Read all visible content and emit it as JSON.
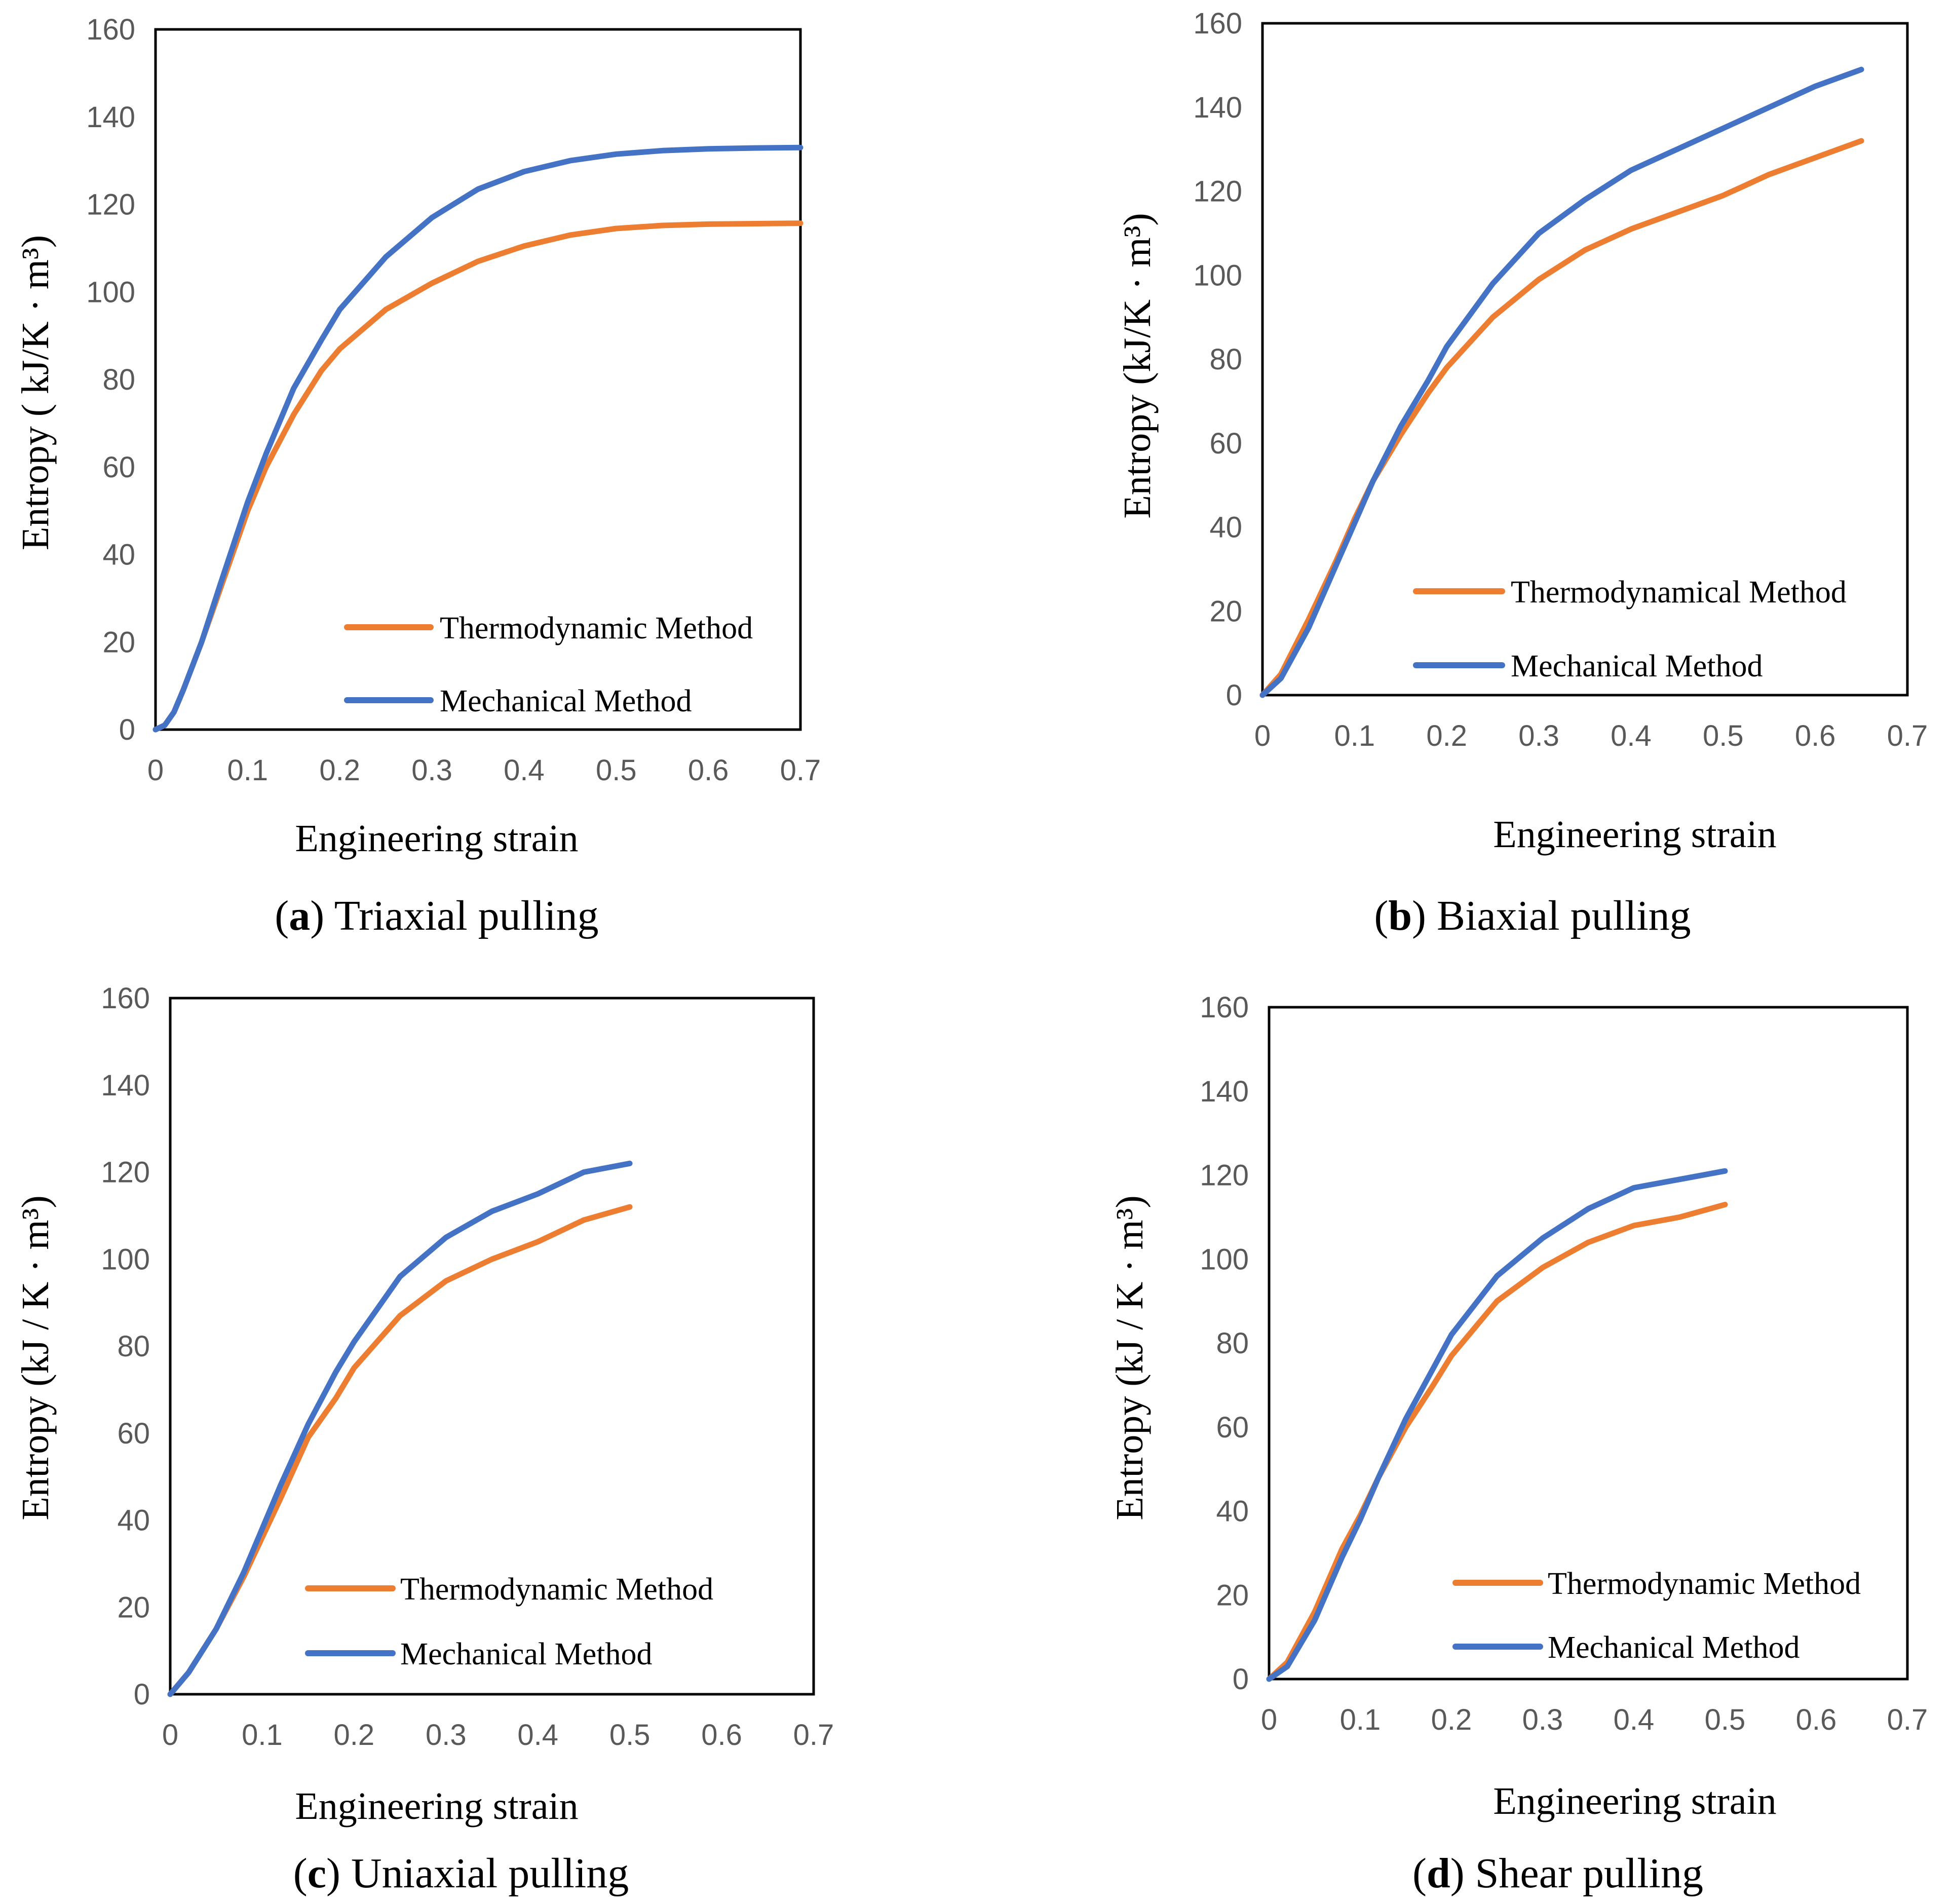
{
  "chart_data": [
    {
      "id": "a",
      "type": "line",
      "caption_letter": "a",
      "caption_text": "Triaxial pulling",
      "xlabel": "Engineering strain",
      "ylabel": "Entropy ( kJ/K · m³)",
      "xlim": [
        0,
        0.7
      ],
      "ylim": [
        0,
        160
      ],
      "xticks": [
        "0",
        "0.1",
        "0.2",
        "0.3",
        "0.4",
        "0.5",
        "0.6",
        "0.7"
      ],
      "yticks": [
        "0",
        "20",
        "40",
        "60",
        "80",
        "100",
        "120",
        "140",
        "160"
      ],
      "legend_position": "bottom-right",
      "series": [
        {
          "name": "Thermodynamic Method",
          "color": "#ED7D31",
          "x": [
            0,
            0.01,
            0.02,
            0.03,
            0.05,
            0.07,
            0.1,
            0.12,
            0.15,
            0.18,
            0.2,
            0.25,
            0.3,
            0.35,
            0.4,
            0.45,
            0.5,
            0.55,
            0.6,
            0.65,
            0.7
          ],
          "y": [
            0,
            1,
            4,
            9,
            20,
            32,
            50,
            60,
            72,
            82,
            87,
            96,
            102,
            107,
            110.5,
            113,
            114.5,
            115.2,
            115.5,
            115.6,
            115.7
          ]
        },
        {
          "name": "Mechanical Method",
          "color": "#4472C4",
          "x": [
            0,
            0.01,
            0.02,
            0.03,
            0.05,
            0.07,
            0.1,
            0.12,
            0.15,
            0.18,
            0.2,
            0.25,
            0.3,
            0.35,
            0.4,
            0.45,
            0.5,
            0.55,
            0.6,
            0.65,
            0.7
          ],
          "y": [
            0,
            1,
            4,
            9,
            20,
            33,
            52,
            63,
            78,
            89,
            96,
            108,
            117,
            123.5,
            127.5,
            130,
            131.5,
            132.3,
            132.7,
            132.9,
            133
          ]
        }
      ]
    },
    {
      "id": "b",
      "type": "line",
      "caption_letter": "b",
      "caption_text": "Biaxial pulling",
      "xlabel": "Engineering strain",
      "ylabel": "Entropy (kJ/K · m³)",
      "xlim": [
        0,
        0.7
      ],
      "ylim": [
        0,
        160
      ],
      "xticks": [
        "0",
        "0.1",
        "0.2",
        "0.3",
        "0.4",
        "0.5",
        "0.6",
        "0.7"
      ],
      "yticks": [
        "0",
        "20",
        "40",
        "60",
        "80",
        "100",
        "120",
        "140",
        "160"
      ],
      "legend_position": "bottom-right",
      "series": [
        {
          "name": "Thermodynamical Method",
          "color": "#ED7D31",
          "x": [
            0,
            0.02,
            0.05,
            0.08,
            0.1,
            0.12,
            0.15,
            0.18,
            0.2,
            0.25,
            0.3,
            0.35,
            0.4,
            0.45,
            0.5,
            0.55,
            0.6,
            0.65
          ],
          "y": [
            0,
            5,
            18,
            32,
            42,
            51,
            62,
            72,
            78,
            90,
            99,
            106,
            111,
            115,
            119,
            124,
            128,
            132
          ]
        },
        {
          "name": "Mechanical Method",
          "color": "#4472C4",
          "x": [
            0,
            0.02,
            0.05,
            0.08,
            0.1,
            0.12,
            0.15,
            0.18,
            0.2,
            0.25,
            0.3,
            0.35,
            0.4,
            0.45,
            0.5,
            0.55,
            0.6,
            0.65
          ],
          "y": [
            0,
            4,
            16,
            31,
            41,
            51,
            64,
            75,
            83,
            98,
            110,
            118,
            125,
            130,
            135,
            140,
            145,
            149
          ]
        }
      ]
    },
    {
      "id": "c",
      "type": "line",
      "caption_letter": "c",
      "caption_text": "Uniaxial pulling",
      "xlabel": "Engineering strain",
      "ylabel": "Entropy (kJ / K · m³)",
      "xlim": [
        0,
        0.7
      ],
      "ylim": [
        0,
        160
      ],
      "xticks": [
        "0",
        "0.1",
        "0.2",
        "0.3",
        "0.4",
        "0.5",
        "0.6",
        "0.7"
      ],
      "yticks": [
        "0",
        "20",
        "40",
        "60",
        "80",
        "100",
        "120",
        "140",
        "160"
      ],
      "legend_position": "bottom-right",
      "series": [
        {
          "name": "Thermodynamic Method",
          "color": "#ED7D31",
          "x": [
            0,
            0.02,
            0.05,
            0.08,
            0.1,
            0.12,
            0.15,
            0.18,
            0.2,
            0.25,
            0.3,
            0.35,
            0.4,
            0.45,
            0.5
          ],
          "y": [
            0,
            5,
            15,
            27,
            36,
            45,
            59,
            68,
            75,
            87,
            95,
            100,
            104,
            109,
            112
          ]
        },
        {
          "name": "Mechanical Method",
          "color": "#4472C4",
          "x": [
            0,
            0.02,
            0.05,
            0.08,
            0.1,
            0.12,
            0.15,
            0.18,
            0.2,
            0.25,
            0.3,
            0.35,
            0.4,
            0.45,
            0.5
          ],
          "y": [
            0,
            5,
            15,
            28,
            38,
            48,
            62,
            74,
            81,
            96,
            105,
            111,
            115,
            120,
            122
          ]
        }
      ]
    },
    {
      "id": "d",
      "type": "line",
      "caption_letter": "d",
      "caption_text": "Shear pulling",
      "xlabel": "Engineering strain",
      "ylabel": "Entropy (kJ / K · m³)",
      "xlim": [
        0,
        0.7
      ],
      "ylim": [
        0,
        160
      ],
      "xticks": [
        "0",
        "0.1",
        "0.2",
        "0.3",
        "0.4",
        "0.5",
        "0.6",
        "0.7"
      ],
      "yticks": [
        "0",
        "20",
        "40",
        "60",
        "80",
        "100",
        "120",
        "140",
        "160"
      ],
      "legend_position": "bottom-right",
      "series": [
        {
          "name": "Thermodynamic Method",
          "color": "#ED7D31",
          "x": [
            0,
            0.02,
            0.05,
            0.08,
            0.1,
            0.12,
            0.15,
            0.18,
            0.2,
            0.25,
            0.3,
            0.35,
            0.4,
            0.45,
            0.5
          ],
          "y": [
            0,
            4,
            16,
            31,
            39,
            48,
            60,
            70,
            77,
            90,
            98,
            104,
            108,
            110,
            113
          ]
        },
        {
          "name": "Mechanical Method",
          "color": "#4472C4",
          "x": [
            0,
            0.02,
            0.05,
            0.08,
            0.1,
            0.12,
            0.15,
            0.18,
            0.2,
            0.25,
            0.3,
            0.35,
            0.4,
            0.45,
            0.5
          ],
          "y": [
            0,
            3,
            14,
            29,
            38,
            48,
            62,
            74,
            82,
            96,
            105,
            112,
            117,
            119,
            121
          ]
        }
      ]
    }
  ]
}
